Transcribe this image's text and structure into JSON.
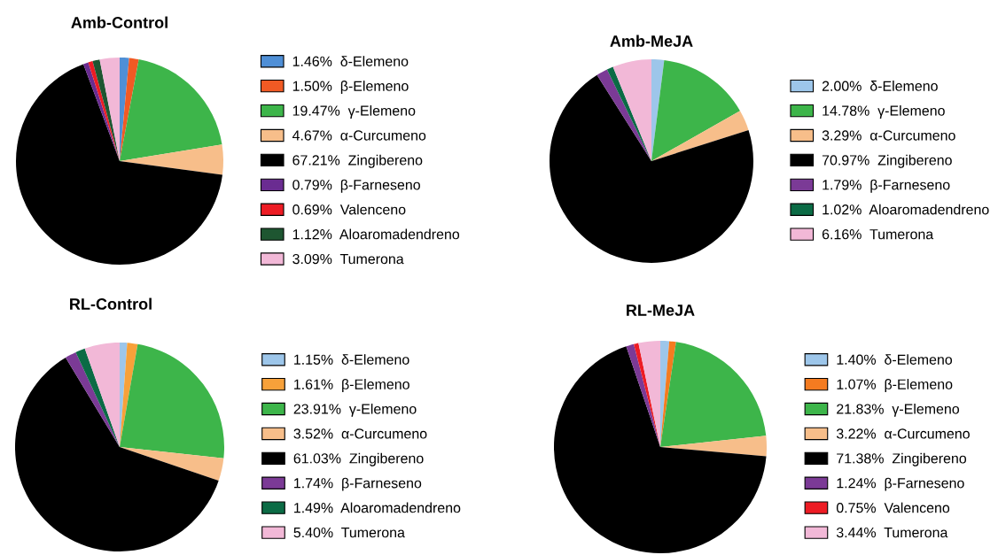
{
  "chart_data": [
    {
      "type": "pie",
      "title": "Amb-Control",
      "legend": "right",
      "categories": [
        "δ-Elemeno",
        "β-Elemeno",
        "γ-Elemeno",
        "α-Curcumeno",
        "Zingibereno",
        "β-Farneseno",
        "Valenceno",
        "Aloaromadendreno",
        "Tumerona"
      ],
      "values": [
        1.46,
        1.5,
        19.47,
        4.67,
        67.21,
        0.79,
        0.69,
        1.12,
        3.09
      ],
      "value_labels": [
        "1.46%",
        "1.50%",
        "19.47%",
        "4.67%",
        "67.21%",
        "0.79%",
        "0.69%",
        "1.12%",
        "3.09%"
      ],
      "colors": [
        "#4f8fd6",
        "#f15a24",
        "#3db54a",
        "#f7be8a",
        "#000000",
        "#6a2c91",
        "#ed1c24",
        "#1e5631",
        "#f2b8d7"
      ]
    },
    {
      "type": "pie",
      "title": "Amb-MeJA",
      "legend": "right",
      "categories": [
        "δ-Elemeno",
        "γ-Elemeno",
        "α-Curcumeno",
        "Zingibereno",
        "β-Farneseno",
        "Aloaromadendreno",
        "Tumerona"
      ],
      "values": [
        2.0,
        14.78,
        3.29,
        70.97,
        1.79,
        1.02,
        6.16
      ],
      "value_labels": [
        "2.00%",
        "14.78%",
        "3.29%",
        "70.97%",
        "1.79%",
        "1.02%",
        "6.16%"
      ],
      "colors": [
        "#9dc6ea",
        "#3db54a",
        "#f7be8a",
        "#000000",
        "#7b3a96",
        "#0b6b45",
        "#f2b8d7"
      ]
    },
    {
      "type": "pie",
      "title": "RL-Control",
      "legend": "right",
      "categories": [
        "δ-Elemeno",
        "β-Elemeno",
        "γ-Elemeno",
        "α-Curcumeno",
        "Zingibereno",
        "β-Farneseno",
        "Aloaromadendreno",
        "Tumerona"
      ],
      "values": [
        1.15,
        1.61,
        23.91,
        3.52,
        61.03,
        1.74,
        1.49,
        5.4
      ],
      "value_labels": [
        "1.15%",
        "1.61%",
        "23.91%",
        "3.52%",
        "61.03%",
        "1.74%",
        "1.49%",
        "5.40%"
      ],
      "colors": [
        "#9dc6ea",
        "#f7a13a",
        "#3db54a",
        "#f7be8a",
        "#000000",
        "#7b3a96",
        "#0b6b45",
        "#f2b8d7"
      ]
    },
    {
      "type": "pie",
      "title": "RL-MeJA",
      "legend": "right",
      "categories": [
        "δ-Elemeno",
        "β-Elemeno",
        "γ-Elemeno",
        "α-Curcumeno",
        "Zingibereno",
        "β-Farneseno",
        "Valenceno",
        "Tumerona"
      ],
      "values": [
        1.4,
        1.07,
        21.83,
        3.22,
        71.38,
        1.24,
        0.75,
        3.44
      ],
      "value_labels": [
        "1.40%",
        "1.07%",
        "21.83%",
        "3.22%",
        "71.38%",
        "1.24%",
        "0.75%",
        "3.44%"
      ],
      "colors": [
        "#9dc6ea",
        "#f47b20",
        "#3db54a",
        "#f7be8a",
        "#000000",
        "#7b3a96",
        "#ed1c24",
        "#f2b8d7"
      ]
    }
  ]
}
